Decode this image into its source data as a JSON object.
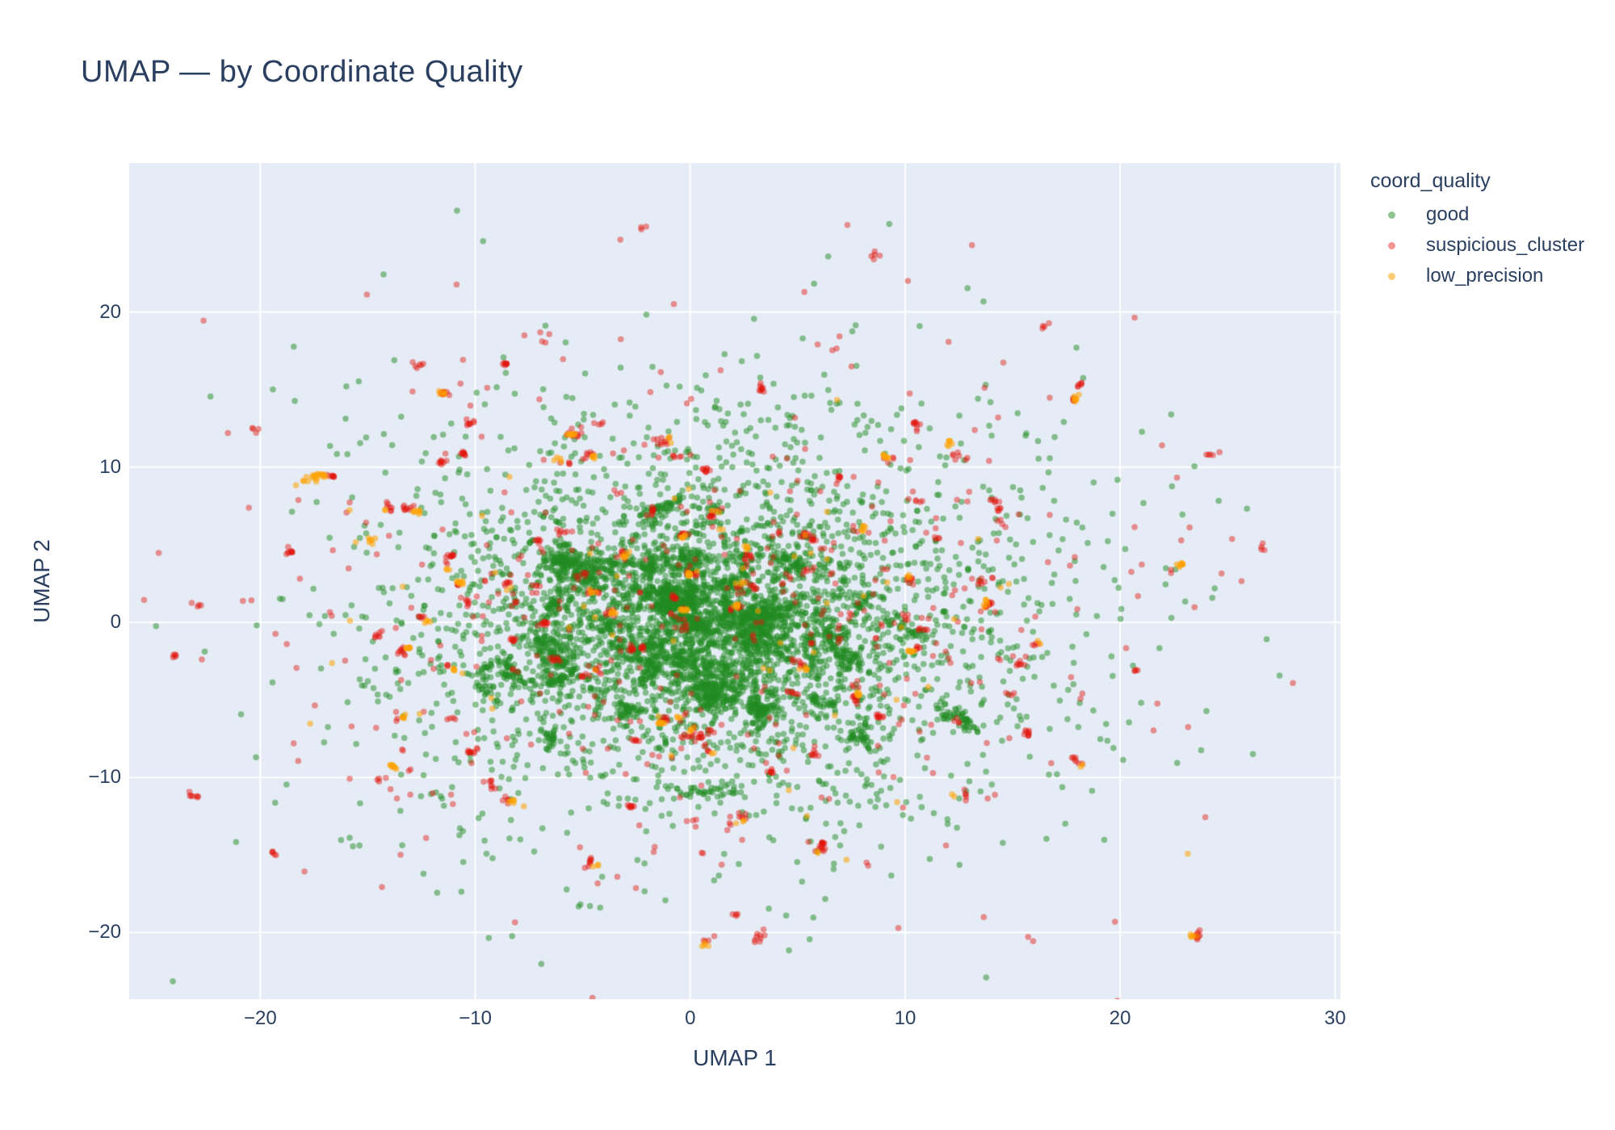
{
  "title": {
    "text": "UMAP — by Coordinate Quality"
  },
  "chart_data": {
    "type": "scatter",
    "title": "UMAP — by Coordinate Quality",
    "xlabel": "UMAP 1",
    "ylabel": "UMAP 2",
    "legend_title": "coord_quality",
    "legend_position": "right",
    "grid": true,
    "plot_bg_color": "#E5ECF6",
    "grid_color": "#ffffff",
    "text_color": "#2a3f5f",
    "x_range": [
      -26.1,
      30.25
    ],
    "y_range": [
      -24.3,
      29.6
    ],
    "x_ticks": [
      -20,
      -10,
      0,
      10,
      20,
      30
    ],
    "x_tick_labels": [
      "−20",
      "−10",
      "0",
      "10",
      "20",
      "30"
    ],
    "y_ticks": [
      20,
      10,
      0,
      -10,
      -20
    ],
    "y_tick_labels": [
      "20",
      "10",
      "0",
      "−10",
      "−20"
    ],
    "marker_size_px": 7.5,
    "seed": 11,
    "series": [
      {
        "name": "good",
        "color": "#228B22",
        "opacity": 0.5,
        "gen": {
          "backgrounds": [
            {
              "n": 2200,
              "cx": 1.0,
              "cy": 0.5,
              "sx": 8.5,
              "sy": 7.2
            },
            {
              "n": 1400,
              "cx": 0.5,
              "cy": -0.5,
              "sx": 4.8,
              "sy": 3.9
            }
          ],
          "filaments": {
            "count": 80,
            "cx": 0.8,
            "cy": -0.3,
            "sx": 4.5,
            "sy": 3.6,
            "pts_min": 6,
            "pts_max": 26,
            "len_min": 0.7,
            "len_max": 3.0,
            "jitter": 0.16,
            "curve": 0.3
          }
        }
      },
      {
        "name": "suspicious_cluster",
        "color": "#E3170D",
        "opacity": 0.45,
        "gen": {
          "backgrounds": [
            {
              "n": 400,
              "cx": 1.5,
              "cy": 0.8,
              "sx": 11.0,
              "sy": 9.0
            }
          ],
          "clumps": {
            "count": 135,
            "cx": 1.0,
            "cy": 0.5,
            "sx": 10.3,
            "sy": 8.5,
            "pts_min": 2,
            "pts_max": 9,
            "radius": 0.27
          },
          "explicit_clumps": [
            {
              "x": 3.2,
              "y": -20.3,
              "n": 9,
              "r": 0.5
            },
            {
              "x": 2.1,
              "y": -18.9,
              "n": 4,
              "r": 0.3
            },
            {
              "x": -23.0,
              "y": 1.2,
              "n": 4,
              "r": 0.3
            },
            {
              "x": -20.3,
              "y": 12.4,
              "n": 4,
              "r": 0.3
            },
            {
              "x": 26.6,
              "y": 4.9,
              "n": 4,
              "r": 0.3
            },
            {
              "x": 24.2,
              "y": 10.7,
              "n": 5,
              "r": 0.35
            },
            {
              "x": 8.7,
              "y": 23.7,
              "n": 5,
              "r": 0.35
            },
            {
              "x": -2.2,
              "y": 25.4,
              "n": 3,
              "r": 0.3
            },
            {
              "x": -12.6,
              "y": 16.5,
              "n": 6,
              "r": 0.4
            },
            {
              "x": 16.5,
              "y": 19.2,
              "n": 4,
              "r": 0.3
            }
          ]
        }
      },
      {
        "name": "low_precision",
        "color": "#FFA200",
        "opacity": 0.55,
        "gen": {
          "backgrounds": [
            {
              "n": 60,
              "cx": 0.5,
              "cy": 0.5,
              "sx": 8.5,
              "sy": 6.0
            }
          ],
          "clumps": {
            "count": 50,
            "cx": 0.5,
            "cy": 0.8,
            "sx": 8.0,
            "sy": 5.5,
            "pts_min": 2,
            "pts_max": 8,
            "radius": 0.2,
            "share_centers_with": "suspicious_cluster",
            "share_jitter": 0.25
          },
          "explicit_clumps": [
            {
              "x": -17.6,
              "y": 9.3,
              "n": 14,
              "r": 0.5
            },
            {
              "x": -14.8,
              "y": 5.2,
              "n": 6,
              "r": 0.35
            }
          ]
        }
      }
    ]
  }
}
